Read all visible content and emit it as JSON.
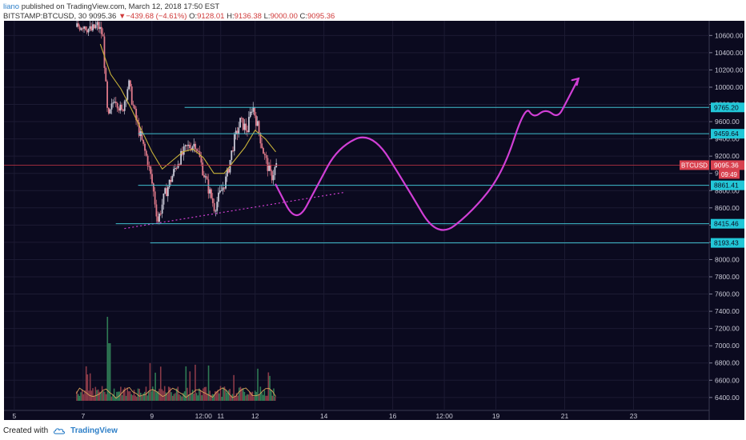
{
  "header": {
    "author": "liano",
    "published_text": "published on TradingView.com, March 12, 2018 17:50 EST",
    "symbol": "BITSTAMP:BTCUSD, 30",
    "last_price": "9095.36",
    "change_arrow": "▼",
    "change": "−439.68 (−4.61%)",
    "open_label": "O:",
    "open": "9128.01",
    "high_label": "H:",
    "high": "9136.38",
    "low_label": "L:",
    "low": "9000.00",
    "close_label": "C:",
    "close": "9095.36"
  },
  "footer": {
    "created_with": "Created with",
    "brand": "TradingView"
  },
  "chart_data": {
    "type": "candlestick",
    "ylim": [
      6250,
      10770
    ],
    "y_ticks": [
      6400,
      6600,
      6800,
      7000,
      7200,
      7400,
      7600,
      7800,
      8000,
      8200,
      8400,
      8600,
      8800,
      9000,
      9200,
      9400,
      9600,
      9800,
      10000,
      10200,
      10400,
      10600
    ],
    "y_tick_labels": [
      "6400.00",
      "6600.00",
      "6800.00",
      "7000.00",
      "7200.00",
      "7400.00",
      "7600.00",
      "7800.00",
      "8000.00",
      "8200.00",
      "8400.00",
      "8600.00",
      "8800.00",
      "9000.00",
      "9200.00",
      "9400.00",
      "9600.00",
      "9800.00",
      "10000.00",
      "10200.00",
      "10400.00",
      "10600.00"
    ],
    "x_tick_labels": [
      "5",
      "7",
      "9",
      "12:00",
      "11",
      "12",
      "14",
      "16",
      "12:00",
      "19",
      "21",
      "23"
    ],
    "x_tick_days": [
      5,
      7,
      9,
      10.5,
      11,
      12,
      14,
      16,
      17.5,
      19,
      21,
      23
    ],
    "x_range_days": [
      4.7,
      25.2
    ],
    "horizontal_levels": [
      {
        "value": 9765.2,
        "label": "9765.20",
        "from_day": 9.95
      },
      {
        "value": 9459.64,
        "label": "9459.64",
        "from_day": 8.6
      },
      {
        "value": 8861.41,
        "label": "8861.41",
        "from_day": 8.6
      },
      {
        "value": 8415.46,
        "label": "8415.46",
        "from_day": 7.95
      },
      {
        "value": 8193.43,
        "label": "8193.43",
        "from_day": 8.95
      }
    ],
    "price_tag": {
      "symbol": "BTCUSD",
      "value": 9095.36,
      "label": "9095.36",
      "countdown": "09:49"
    },
    "support_trendline": [
      [
        8.2,
        8360
      ],
      [
        14.6,
        8780
      ]
    ],
    "price_path": [
      [
        6.8,
        10700
      ],
      [
        7.0,
        10730
      ],
      [
        7.2,
        10650
      ],
      [
        7.4,
        10720
      ],
      [
        7.55,
        10600
      ],
      [
        7.7,
        9600
      ],
      [
        7.9,
        9900
      ],
      [
        8.1,
        9700
      ],
      [
        8.3,
        10050
      ],
      [
        8.5,
        9650
      ],
      [
        8.7,
        9350
      ],
      [
        8.85,
        9150
      ],
      [
        9.0,
        8850
      ],
      [
        9.15,
        8450
      ],
      [
        9.35,
        8750
      ],
      [
        9.55,
        8950
      ],
      [
        9.75,
        9150
      ],
      [
        10.0,
        9300
      ],
      [
        10.25,
        9350
      ],
      [
        10.45,
        9050
      ],
      [
        10.6,
        8850
      ],
      [
        10.8,
        8600
      ],
      [
        10.95,
        8750
      ],
      [
        11.15,
        8950
      ],
      [
        11.35,
        9350
      ],
      [
        11.55,
        9600
      ],
      [
        11.75,
        9500
      ],
      [
        11.9,
        9800
      ],
      [
        12.05,
        9550
      ],
      [
        12.25,
        9200
      ],
      [
        12.45,
        8950
      ],
      [
        12.6,
        9100
      ]
    ],
    "moving_average": [
      [
        7.5,
        10500
      ],
      [
        7.8,
        10150
      ],
      [
        8.1,
        9980
      ],
      [
        8.4,
        9750
      ],
      [
        8.7,
        9500
      ],
      [
        9.0,
        9250
      ],
      [
        9.3,
        9050
      ],
      [
        9.6,
        9150
      ],
      [
        9.9,
        9250
      ],
      [
        10.2,
        9280
      ],
      [
        10.5,
        9180
      ],
      [
        10.8,
        9000
      ],
      [
        11.1,
        9000
      ],
      [
        11.4,
        9150
      ],
      [
        11.7,
        9300
      ],
      [
        12.0,
        9500
      ],
      [
        12.3,
        9400
      ],
      [
        12.6,
        9250
      ]
    ],
    "projection_path": [
      [
        12.6,
        8870
      ],
      [
        13.2,
        8400
      ],
      [
        13.8,
        8850
      ],
      [
        14.4,
        9300
      ],
      [
        15.4,
        9490
      ],
      [
        16.4,
        8850
      ],
      [
        17.3,
        8240
      ],
      [
        18.3,
        8550
      ],
      [
        19.2,
        9000
      ],
      [
        19.85,
        9790
      ],
      [
        20.1,
        9640
      ],
      [
        20.45,
        9750
      ],
      [
        20.8,
        9640
      ],
      [
        21.05,
        9830
      ],
      [
        21.4,
        10100
      ]
    ]
  }
}
